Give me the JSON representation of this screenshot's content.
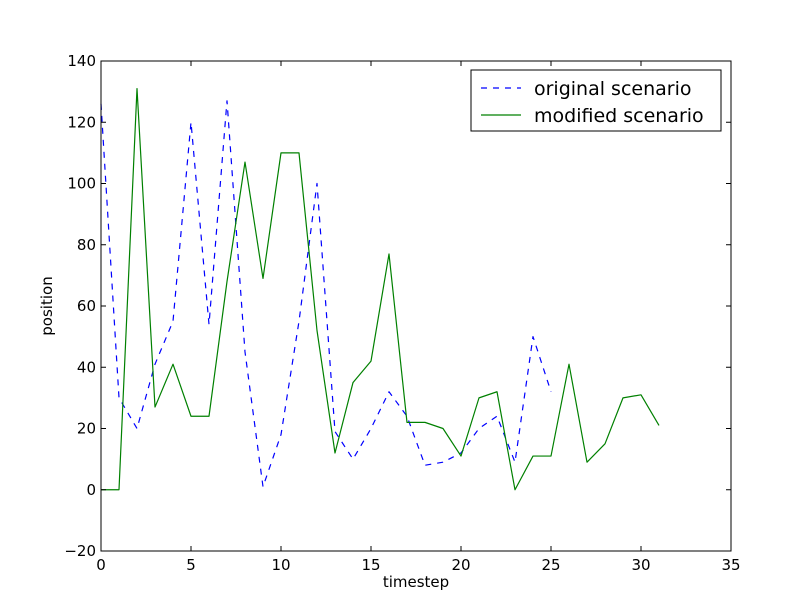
{
  "chart_data": {
    "type": "line",
    "xlabel": "timestep",
    "ylabel": "position",
    "xlim": [
      0,
      35
    ],
    "ylim": [
      -20,
      140
    ],
    "xticks": [
      "0",
      "5",
      "10",
      "15",
      "20",
      "25",
      "30",
      "35"
    ],
    "yticks": [
      "−20",
      "0",
      "20",
      "40",
      "60",
      "80",
      "100",
      "120",
      "140"
    ],
    "grid": false,
    "legend_position": "top-right",
    "series": [
      {
        "name": "original scenario",
        "color": "#0000ff",
        "style": "dashed",
        "x": [
          0,
          1,
          2,
          3,
          4,
          5,
          6,
          7,
          8,
          9,
          10,
          11,
          12,
          13,
          14,
          15,
          16,
          17,
          18,
          19,
          20,
          21,
          22,
          23,
          24,
          25
        ],
        "y": [
          126,
          30,
          20,
          41,
          55,
          120,
          54,
          127,
          45,
          1,
          18,
          55,
          100,
          19,
          10,
          20,
          32,
          24,
          8,
          9,
          12,
          20,
          24,
          9,
          50,
          32
        ]
      },
      {
        "name": "modified scenario",
        "color": "#008000",
        "style": "solid",
        "x": [
          0,
          1,
          2,
          3,
          4,
          5,
          6,
          7,
          8,
          9,
          10,
          11,
          12,
          13,
          14,
          15,
          16,
          17,
          18,
          19,
          20,
          21,
          22,
          23,
          24,
          25,
          26,
          27,
          28,
          29,
          30,
          31
        ],
        "y": [
          0,
          0,
          131,
          27,
          41,
          24,
          24,
          68,
          107,
          69,
          110,
          110,
          52,
          12,
          35,
          42,
          77,
          22,
          22,
          20,
          11,
          30,
          32,
          0,
          11,
          11,
          41,
          9,
          15,
          30,
          31,
          21
        ]
      }
    ]
  }
}
